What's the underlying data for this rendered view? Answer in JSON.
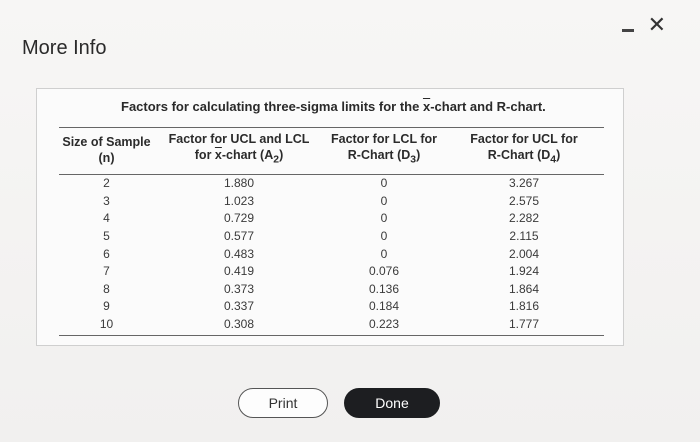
{
  "window": {
    "title": "More Info",
    "minimize_label": "-",
    "close_label": "✕"
  },
  "panel": {
    "caption_part1": "Factors for calculating three-sigma limits for the ",
    "caption_x": "x",
    "caption_part2": "-chart and R-chart."
  },
  "table": {
    "headers": [
      {
        "line1": "Size of Sample",
        "line2": "(n)"
      },
      {
        "line1": "Factor for UCL and LCL",
        "line2_prefix": "for ",
        "line2_x": "x",
        "line2_suffix": "-chart (A",
        "sub": "2",
        "close": ")"
      },
      {
        "line1": "Factor for LCL for",
        "line2_prefix": "R-Chart (D",
        "sub": "3",
        "close": ")"
      },
      {
        "line1": "Factor for UCL for",
        "line2_prefix": "R-Chart (D",
        "sub": "4",
        "close": ")"
      }
    ],
    "rows": [
      [
        "2",
        "1.880",
        "0",
        "3.267"
      ],
      [
        "3",
        "1.023",
        "0",
        "2.575"
      ],
      [
        "4",
        "0.729",
        "0",
        "2.282"
      ],
      [
        "5",
        "0.577",
        "0",
        "2.115"
      ],
      [
        "6",
        "0.483",
        "0",
        "2.004"
      ],
      [
        "7",
        "0.419",
        "0.076",
        "1.924"
      ],
      [
        "8",
        "0.373",
        "0.136",
        "1.864"
      ],
      [
        "9",
        "0.337",
        "0.184",
        "1.816"
      ],
      [
        "10",
        "0.308",
        "0.223",
        "1.777"
      ]
    ]
  },
  "buttons": {
    "print": "Print",
    "done": "Done"
  }
}
